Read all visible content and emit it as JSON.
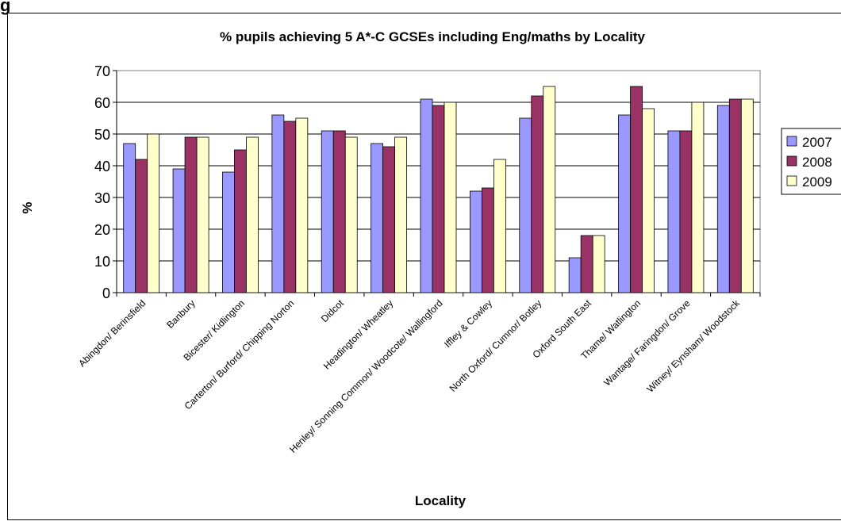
{
  "page": {
    "corner_label": "g"
  },
  "chart_data": {
    "type": "bar",
    "title": "% pupils achieving 5 A*-C GCSEs including Eng/maths by Locality",
    "xlabel": "Locality",
    "ylabel": "%",
    "ylim": [
      0,
      70
    ],
    "yticks": [
      0,
      10,
      20,
      30,
      40,
      50,
      60,
      70
    ],
    "grid": "horizontal",
    "legend_position": "right",
    "categories": [
      "Abingdon/ Berinsfield",
      "Banbury",
      "Bicester/ Kidlington",
      "Carterton/ Burford/ Chipping Norton",
      "Didcot",
      "Headington/ Wheatley",
      "Henley/ Sonning Common/ Woodcote/ Wallingford",
      "Iffley & Cowley",
      "North Oxford/ Cumnor/ Botley",
      "Oxford South East",
      "Thame/ Watlington",
      "Wantage/ Faringdon/ Grove",
      "Witney/ Eynsham/ Woodstock"
    ],
    "series": [
      {
        "name": "2007",
        "color": "#9999ff",
        "values": [
          47,
          39,
          38,
          56,
          51,
          47,
          61,
          32,
          55,
          11,
          56,
          51,
          59
        ]
      },
      {
        "name": "2008",
        "color": "#993366",
        "values": [
          42,
          49,
          45,
          54,
          51,
          46,
          59,
          33,
          62,
          18,
          65,
          51,
          61
        ]
      },
      {
        "name": "2009",
        "color": "#ffffcc",
        "values": [
          50,
          49,
          49,
          55,
          49,
          49,
          60,
          42,
          65,
          18,
          58,
          60,
          61
        ]
      }
    ]
  }
}
